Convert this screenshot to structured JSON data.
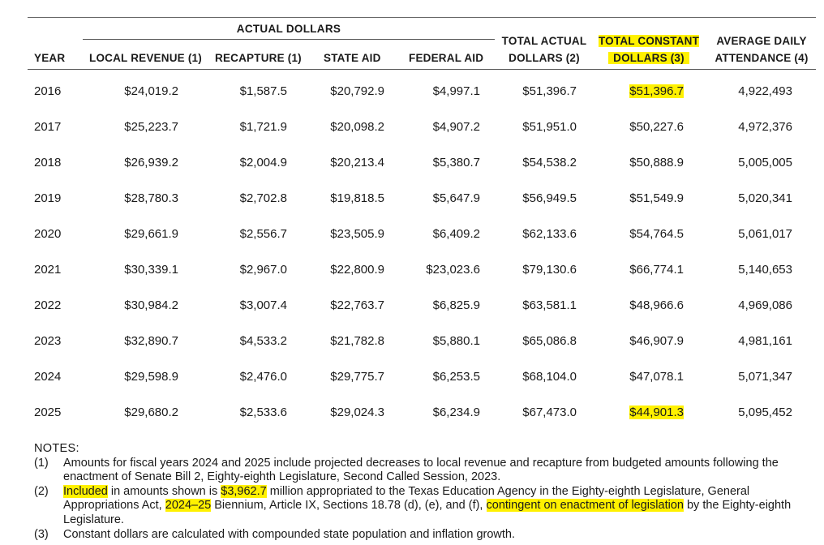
{
  "table": {
    "group_header": "ACTUAL DOLLARS",
    "columns": {
      "year": "YEAR",
      "local": "LOCAL REVENUE (1)",
      "recapture": "RECAPTURE (1)",
      "state": "STATE AID",
      "federal": "FEDERAL AID",
      "total_line1": "TOTAL ACTUAL",
      "total_line2": "DOLLARS (2)",
      "const_line1": "TOTAL CONSTANT",
      "const_line2": "DOLLARS (3)",
      "ada_line1": "AVERAGE DAILY",
      "ada_line2": "ATTENDANCE (4)"
    },
    "rows": [
      {
        "year": "2016",
        "local": "$24,019.2",
        "recapture": "$1,587.5",
        "state": "$20,792.9",
        "federal": "$4,997.1",
        "total": "$51,396.7",
        "constant": "$51,396.7",
        "ada": "4,922,493",
        "constant_highlighted": true
      },
      {
        "year": "2017",
        "local": "$25,223.7",
        "recapture": "$1,721.9",
        "state": "$20,098.2",
        "federal": "$4,907.2",
        "total": "$51,951.0",
        "constant": "$50,227.6",
        "ada": "4,972,376",
        "constant_highlighted": false
      },
      {
        "year": "2018",
        "local": "$26,939.2",
        "recapture": "$2,004.9",
        "state": "$20,213.4",
        "federal": "$5,380.7",
        "total": "$54,538.2",
        "constant": "$50,888.9",
        "ada": "5,005,005",
        "constant_highlighted": false
      },
      {
        "year": "2019",
        "local": "$28,780.3",
        "recapture": "$2,702.8",
        "state": "$19,818.5",
        "federal": "$5,647.9",
        "total": "$56,949.5",
        "constant": "$51,549.9",
        "ada": "5,020,341",
        "constant_highlighted": false
      },
      {
        "year": "2020",
        "local": "$29,661.9",
        "recapture": "$2,556.7",
        "state": "$23,505.9",
        "federal": "$6,409.2",
        "total": "$62,133.6",
        "constant": "$54,764.5",
        "ada": "5,061,017",
        "constant_highlighted": false
      },
      {
        "year": "2021",
        "local": "$30,339.1",
        "recapture": "$2,967.0",
        "state": "$22,800.9",
        "federal": "$23,023.6",
        "total": "$79,130.6",
        "constant": "$66,774.1",
        "ada": "5,140,653",
        "constant_highlighted": false
      },
      {
        "year": "2022",
        "local": "$30,984.2",
        "recapture": "$3,007.4",
        "state": "$22,763.7",
        "federal": "$6,825.9",
        "total": "$63,581.1",
        "constant": "$48,966.6",
        "ada": "4,969,086",
        "constant_highlighted": false
      },
      {
        "year": "2023",
        "local": "$32,890.7",
        "recapture": "$4,533.2",
        "state": "$21,782.8",
        "federal": "$5,880.1",
        "total": "$65,086.8",
        "constant": "$46,907.9",
        "ada": "4,981,161",
        "constant_highlighted": false
      },
      {
        "year": "2024",
        "local": "$29,598.9",
        "recapture": "$2,476.0",
        "state": "$29,775.7",
        "federal": "$6,253.5",
        "total": "$68,104.0",
        "constant": "$47,078.1",
        "ada": "5,071,347",
        "constant_highlighted": false
      },
      {
        "year": "2025",
        "local": "$29,680.2",
        "recapture": "$2,533.6",
        "state": "$29,024.3",
        "federal": "$6,234.9",
        "total": "$67,473.0",
        "constant": "$44,901.3",
        "ada": "5,095,452",
        "constant_highlighted": true
      }
    ]
  },
  "notes": {
    "title": "NOTES:",
    "items": [
      {
        "num": "(1)",
        "parts": [
          {
            "text": "Amounts for fiscal years 2024 and 2025 include projected decreases to local revenue and recapture from budgeted amounts following the enactment of Senate Bill 2, Eighty-eighth Legislature, Second Called Session, 2023.",
            "hl": false
          }
        ]
      },
      {
        "num": "(2)",
        "parts": [
          {
            "text": "Included",
            "hl": true
          },
          {
            "text": " in amounts shown is ",
            "hl": false
          },
          {
            "text": "$3,962.7",
            "hl": true
          },
          {
            "text": " million appropriated to the Texas Education Agency in the Eighty-eighth Legislature, General Appropriations Act, ",
            "hl": false
          },
          {
            "text": "2024–25",
            "hl": true
          },
          {
            "text": " Biennium, Article IX, Sections 18.78 (d), (e), and (f), ",
            "hl": false
          },
          {
            "text": "contingent on enactment of legislation",
            "hl": true
          },
          {
            "text": " by the Eighty-eighth Legislature.",
            "hl": false
          }
        ]
      },
      {
        "num": "(3)",
        "parts": [
          {
            "text": "Constant dollars are calculated with compounded state population and inflation growth.",
            "hl": false
          }
        ]
      }
    ]
  },
  "colors": {
    "highlight": "#fff100",
    "rule": "#555555",
    "text": "#1a1a1a"
  }
}
